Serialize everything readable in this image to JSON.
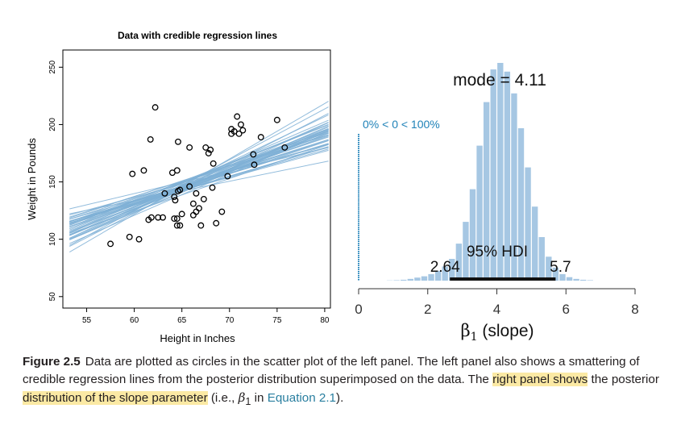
{
  "colors": {
    "regression_line": "#7fb0d6",
    "histogram_bar": "#a6c7e3",
    "hdi_bar": "#111111",
    "zero_marker": "#1f82b8",
    "rope_text": "#1f82b8",
    "caption_highlight": "#fbe9a4",
    "caption_link": "#2a7fa0"
  },
  "chart_data": [
    {
      "type": "scatter",
      "title": "Data with credible regression lines",
      "xlabel": "Height in Inches",
      "ylabel": "Weight in Pounds",
      "xlim": [
        52.5,
        80.6
      ],
      "ylim": [
        40,
        265
      ],
      "xticks": [
        55,
        60,
        65,
        70,
        75,
        80
      ],
      "yticks": [
        50,
        100,
        150,
        200,
        250
      ],
      "points": [
        [
          57.5,
          96
        ],
        [
          59.5,
          102
        ],
        [
          60.5,
          100
        ],
        [
          59.8,
          157
        ],
        [
          61,
          160
        ],
        [
          61.5,
          117
        ],
        [
          61.7,
          187
        ],
        [
          62.2,
          215
        ],
        [
          61.8,
          119
        ],
        [
          62.5,
          119
        ],
        [
          63,
          119
        ],
        [
          63.2,
          140
        ],
        [
          64,
          158
        ],
        [
          64.5,
          160
        ],
        [
          64.2,
          137
        ],
        [
          64.3,
          134
        ],
        [
          64.6,
          142
        ],
        [
          64.8,
          143
        ],
        [
          64.5,
          112
        ],
        [
          64.8,
          112
        ],
        [
          64.2,
          118
        ],
        [
          64.5,
          118
        ],
        [
          65,
          122
        ],
        [
          64.6,
          185
        ],
        [
          65.8,
          180
        ],
        [
          65.8,
          146
        ],
        [
          66.2,
          131
        ],
        [
          66.2,
          121
        ],
        [
          66.5,
          140
        ],
        [
          66.8,
          127
        ],
        [
          66.5,
          124
        ],
        [
          67,
          112
        ],
        [
          67.3,
          135
        ],
        [
          67.5,
          180
        ],
        [
          67.8,
          175
        ],
        [
          68,
          178
        ],
        [
          68.3,
          166
        ],
        [
          68.2,
          145
        ],
        [
          68.6,
          114
        ],
        [
          69.2,
          124
        ],
        [
          69.8,
          155
        ],
        [
          70.2,
          192
        ],
        [
          70.5,
          194
        ],
        [
          70.8,
          207
        ],
        [
          70.2,
          196
        ],
        [
          71.2,
          200
        ],
        [
          71.4,
          195
        ],
        [
          71,
          192
        ],
        [
          72.5,
          174
        ],
        [
          72.6,
          165
        ],
        [
          73.3,
          189
        ],
        [
          75,
          204
        ],
        [
          75.8,
          180
        ]
      ],
      "regression_lines": "posterior credible regression lines (intercept/slope pairs)"
    },
    {
      "type": "bar",
      "subtype": "posterior-histogram",
      "xlabel_prefix": "β",
      "xlabel_sub": "1",
      "xlabel_suffix": " (slope)",
      "xlim": [
        -0.35,
        8.0
      ],
      "xticks": [
        0,
        2,
        4,
        6,
        8
      ],
      "bin_width": 0.2,
      "bin_starts": [
        0.8,
        1.0,
        1.2,
        1.4,
        1.6,
        1.8,
        2.0,
        2.2,
        2.4,
        2.6,
        2.8,
        3.0,
        3.2,
        3.4,
        3.6,
        3.8,
        4.0,
        4.2,
        4.4,
        4.6,
        4.8,
        5.0,
        5.2,
        5.4,
        5.6,
        5.8,
        6.0,
        6.2,
        6.4,
        6.6
      ],
      "densities": [
        0.001,
        0.002,
        0.004,
        0.008,
        0.014,
        0.02,
        0.03,
        0.045,
        0.065,
        0.1,
        0.17,
        0.27,
        0.42,
        0.62,
        0.82,
        0.97,
        1.0,
        0.96,
        0.86,
        0.7,
        0.52,
        0.34,
        0.2,
        0.11,
        0.06,
        0.03,
        0.016,
        0.008,
        0.004,
        0.002
      ],
      "mode_label": "mode = 4.11",
      "rope_label": "0% < 0 < 100%",
      "hdi_label": "95% HDI",
      "hdi_low": 2.64,
      "hdi_high": 5.7,
      "hdi_low_label": "2.64",
      "hdi_high_label": "5.7",
      "comparison_value": 0
    }
  ],
  "caption": {
    "label": "Figure 2.5",
    "part1": "Data are plotted as circles in the scatter plot of the left panel. The left panel also shows a smattering of credible regression lines from the posterior distribution superimposed on the data. The ",
    "hl1": "right panel shows",
    "part2": " the posterior ",
    "hl2": "distribution of the slope parameter",
    "part3": " (i.e., ",
    "beta": "β",
    "beta_sub": "1",
    "part4": " in ",
    "ref": "Equation 2.1",
    "part5": ")."
  }
}
